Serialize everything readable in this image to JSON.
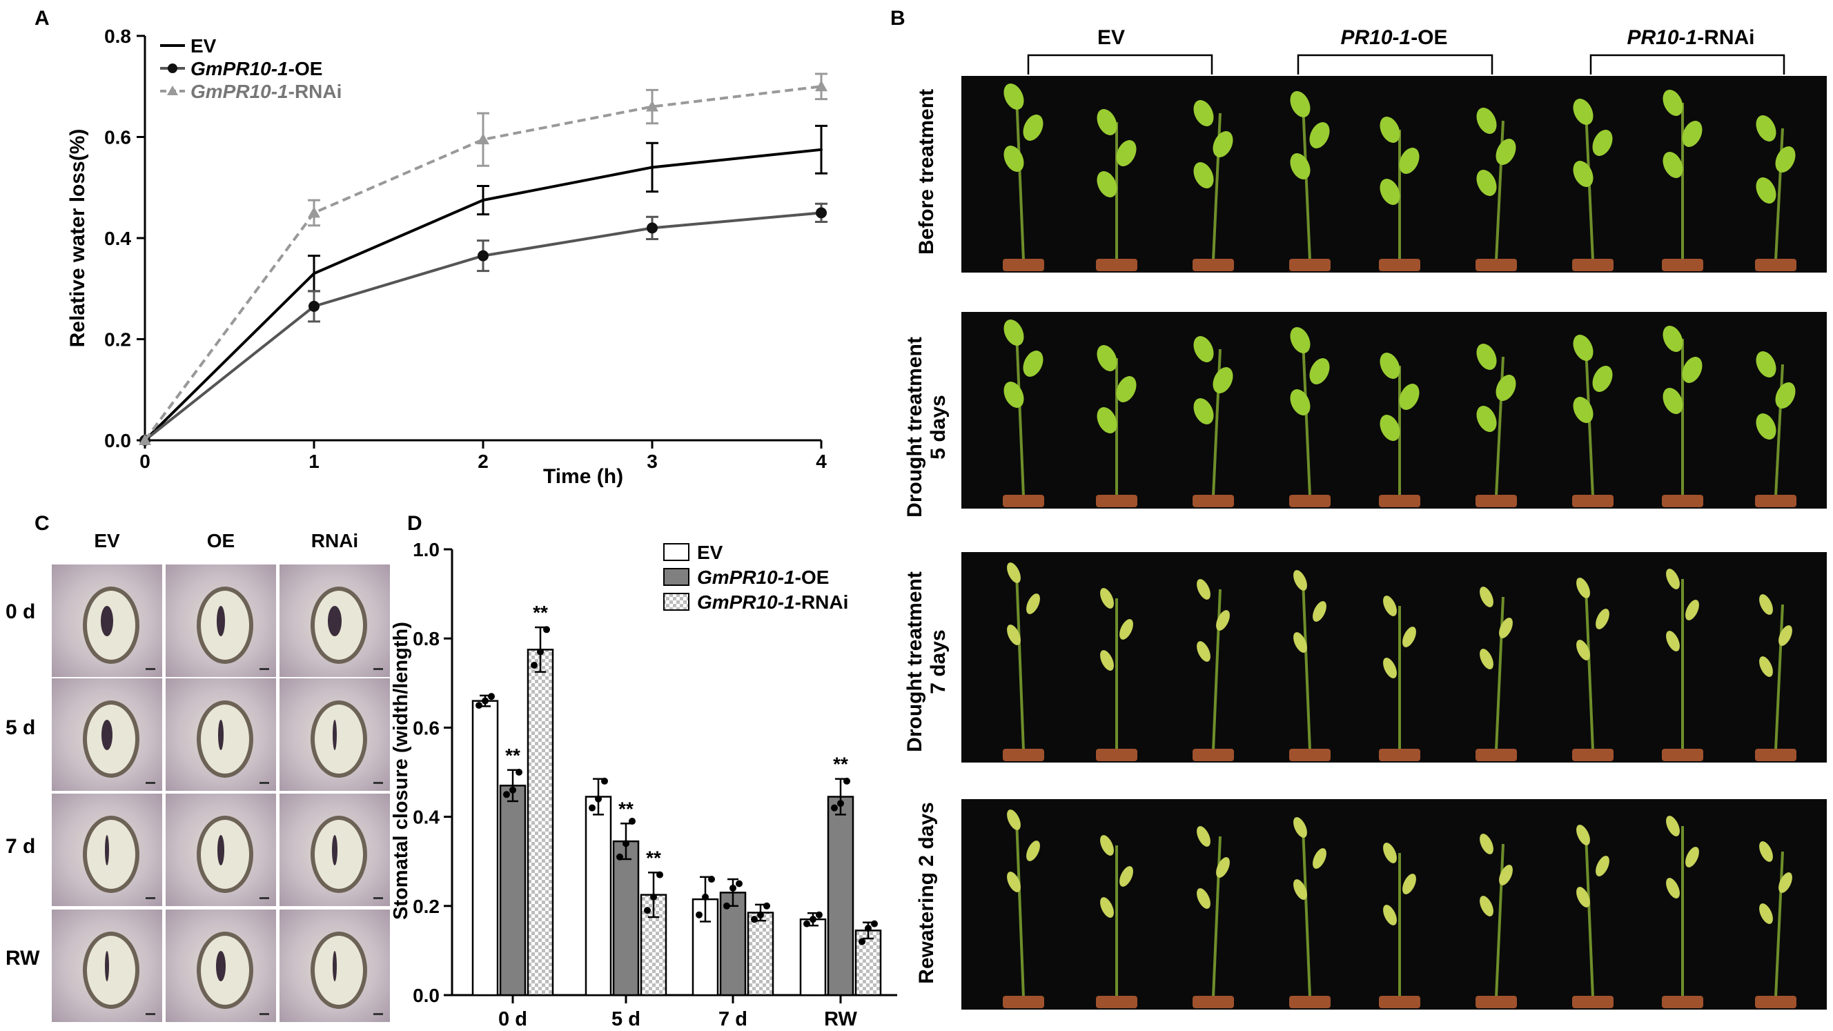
{
  "panels": {
    "a": "A",
    "b": "B",
    "c": "C",
    "d": "D"
  },
  "chart_data": [
    {
      "type": "line",
      "panel": "A",
      "xlabel": "Time (h)",
      "ylabel": "Relative water loss(%)",
      "x": [
        0,
        1,
        2,
        3,
        4
      ],
      "xticks": [
        "0",
        "1",
        "2",
        "3",
        "4"
      ],
      "yticks": [
        "0.0",
        "0.2",
        "0.4",
        "0.6",
        "0.8"
      ],
      "xlim": [
        0,
        4
      ],
      "ylim": [
        0,
        0.8
      ],
      "legend_position": "top-left",
      "series": [
        {
          "name": "EV",
          "legend_italic": "",
          "legend_rest": "EV",
          "color": "#000000",
          "dash": "",
          "marker": "none",
          "values": [
            0,
            0.33,
            0.475,
            0.54,
            0.575
          ],
          "errors": [
            0,
            0.035,
            0.028,
            0.048,
            0.047
          ]
        },
        {
          "name": "GmPR10-1-OE",
          "legend_italic": "GmPR10-1",
          "legend_rest": "-OE",
          "color": "#555555",
          "dash": "",
          "marker": "circle",
          "values": [
            0,
            0.265,
            0.365,
            0.42,
            0.45
          ],
          "errors": [
            0,
            0.03,
            0.03,
            0.022,
            0.018
          ]
        },
        {
          "name": "GmPR10-1-RNAi",
          "legend_italic": "GmPR10-1",
          "legend_rest": "-RNAi",
          "color": "#999999",
          "dash": "12,7",
          "marker": "triangle",
          "values": [
            0,
            0.45,
            0.595,
            0.66,
            0.7
          ],
          "errors": [
            0,
            0.025,
            0.052,
            0.033,
            0.025
          ]
        }
      ]
    },
    {
      "type": "bar",
      "panel": "D",
      "ylabel": "Stomatal closure (width/length)",
      "categories": [
        "0 d",
        "5 d",
        "7 d",
        "RW"
      ],
      "yticks": [
        "0.0",
        "0.2",
        "0.4",
        "0.6",
        "0.8",
        "1.0"
      ],
      "ylim": [
        0,
        1.0
      ],
      "legend_position": "top-right",
      "significance_label": "**",
      "series": [
        {
          "name": "EV",
          "legend_italic": "",
          "legend_rest": "EV",
          "fill": "white",
          "values": [
            0.66,
            0.445,
            0.215,
            0.17
          ],
          "errors": [
            0.012,
            0.04,
            0.05,
            0.014
          ],
          "points": [
            [
              0.65,
              0.66,
              0.67
            ],
            [
              0.42,
              0.44,
              0.48
            ],
            [
              0.18,
              0.22,
              0.26
            ],
            [
              0.16,
              0.17,
              0.18
            ]
          ],
          "significant": [
            false,
            false,
            false,
            false
          ]
        },
        {
          "name": "GmPR10-1-OE",
          "legend_italic": "GmPR10-1",
          "legend_rest": "-OE",
          "fill": "gray",
          "values": [
            0.47,
            0.345,
            0.23,
            0.445
          ],
          "errors": [
            0.035,
            0.04,
            0.03,
            0.04
          ],
          "points": [
            [
              0.45,
              0.46,
              0.5
            ],
            [
              0.31,
              0.34,
              0.39
            ],
            [
              0.2,
              0.24,
              0.25
            ],
            [
              0.42,
              0.43,
              0.48
            ]
          ],
          "significant": [
            true,
            true,
            false,
            true
          ]
        },
        {
          "name": "GmPR10-1-RNAi",
          "legend_italic": "GmPR10-1",
          "legend_rest": "-RNAi",
          "fill": "checker",
          "values": [
            0.775,
            0.225,
            0.185,
            0.145
          ],
          "errors": [
            0.05,
            0.05,
            0.018,
            0.018
          ],
          "points": [
            [
              0.74,
              0.77,
              0.82
            ],
            [
              0.19,
              0.22,
              0.27
            ],
            [
              0.17,
              0.18,
              0.2
            ],
            [
              0.12,
              0.15,
              0.16
            ]
          ],
          "significant": [
            true,
            true,
            false,
            false
          ]
        }
      ]
    }
  ],
  "panel_b": {
    "groups": [
      {
        "italic": "",
        "rest": "EV"
      },
      {
        "italic": "PR10-1",
        "rest": "-OE"
      },
      {
        "italic": "PR10-1",
        "rest": "-RNAi"
      }
    ],
    "rows": [
      {
        "line1": "Before treatment",
        "line2": ""
      },
      {
        "line1": "Drought treatment",
        "line2": "5 days"
      },
      {
        "line1": "Drought treatment",
        "line2": "7 days"
      },
      {
        "line1": "Rewatering 2 days",
        "line2": ""
      }
    ],
    "plant_color_healthy": "#9acd32",
    "plant_color_wilted": "#c8d45a",
    "soil_color": "#a0522d"
  },
  "panel_c": {
    "columns": [
      "EV",
      "OE",
      "RNAi"
    ],
    "rows": [
      "0 d",
      "5 d",
      "7 d",
      "RW"
    ]
  }
}
